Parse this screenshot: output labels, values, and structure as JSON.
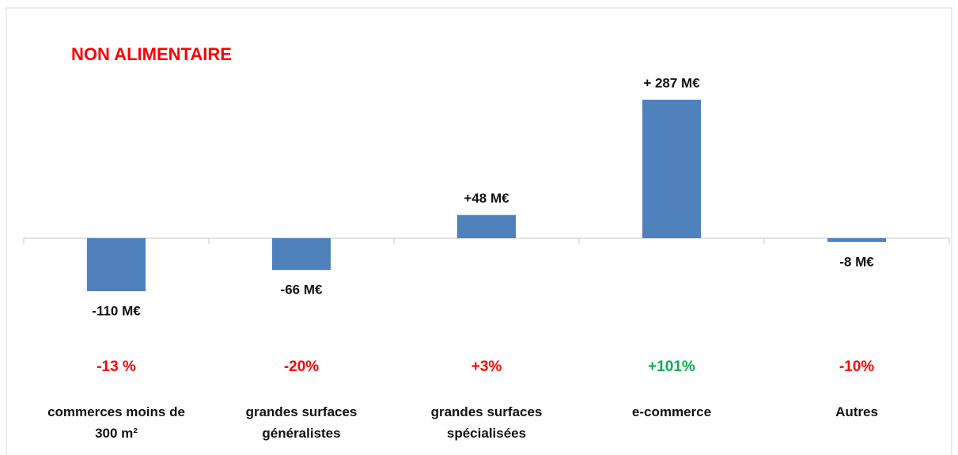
{
  "chart_data": {
    "type": "bar",
    "title": "NON ALIMENTAIRE",
    "categories": [
      "commerces  moins de 300 m²",
      "grandes surfaces généralistes",
      "grandes surfaces spécialisées",
      "e-commerce",
      "Autres"
    ],
    "values": [
      -110,
      -66,
      48,
      287,
      -8
    ],
    "value_labels": [
      "-110 M€",
      "-66 M€",
      "+48 M€",
      "+ 287 M€",
      "-8 M€"
    ],
    "color": "#4f81bd",
    "change_labels": [
      "-13 %",
      "-20%",
      "+3%",
      "+101%",
      "-10%"
    ],
    "change_colors": [
      "#ff0000",
      "#ff0000",
      "#ff0000",
      "#00b050",
      "#ff0000"
    ]
  }
}
